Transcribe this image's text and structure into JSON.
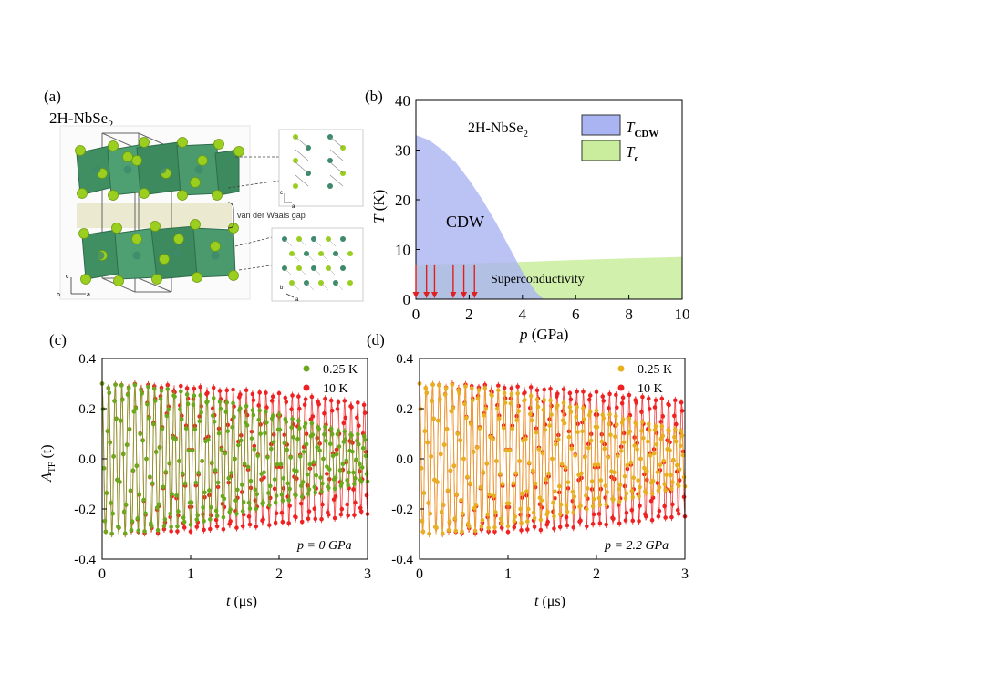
{
  "panel_a": {
    "label": "(a)",
    "title_base": "2H-NbSe",
    "title_sub": "2",
    "gap_label": "van der Waals gap",
    "axes_c": "c",
    "axes_b": "b",
    "axes_a": "a"
  },
  "chart_data": [
    {
      "id": "b",
      "type": "area",
      "label": "(b)",
      "annotation_base": "2H-NbSe",
      "annotation_sub": "2",
      "xlabel_var": "p",
      "xlabel_unit": " (GPa)",
      "ylabel_var": "T",
      "ylabel_unit": " (K)",
      "xlim": [
        0,
        10
      ],
      "ylim": [
        0,
        40
      ],
      "xticks": [
        0,
        2,
        4,
        6,
        8,
        10
      ],
      "yticks": [
        0,
        10,
        20,
        30,
        40
      ],
      "legend": [
        {
          "var": "T",
          "sub": "CDW",
          "color": "#aab4f3"
        },
        {
          "var": "T",
          "sub": "c",
          "color": "#c9ed9c"
        }
      ],
      "regions": {
        "cdw": {
          "name": "CDW",
          "color": "#aab4f3",
          "p": [
            0,
            0.5,
            1.0,
            1.5,
            2.0,
            2.5,
            3.0,
            3.5,
            4.0,
            4.5,
            4.8
          ],
          "T": [
            33,
            32,
            30,
            27.5,
            24,
            20,
            15.5,
            10.5,
            5.5,
            1.5,
            0
          ]
        },
        "sc": {
          "name": "Superconductivity",
          "color": "#c9ed9c",
          "p": [
            0,
            2,
            4,
            6,
            8,
            10
          ],
          "T": [
            7.0,
            7.2,
            7.5,
            7.9,
            8.2,
            8.5
          ]
        }
      },
      "measured_pressures": [
        0,
        0.4,
        0.7,
        1.4,
        1.8,
        2.2
      ],
      "arrow_color": "#e02020"
    },
    {
      "id": "c",
      "type": "scatter",
      "label": "(c)",
      "pressure_label": "p = 0 GPa",
      "xlabel_var": "t",
      "xlabel_unit": " (μs)",
      "ylabel_var": "A",
      "ylabel_sub": "TF",
      "ylabel_unit": " (t)",
      "xlim": [
        0,
        3
      ],
      "ylim": [
        -0.4,
        0.4
      ],
      "xticks": [
        "0",
        "1",
        "2",
        "3"
      ],
      "yticks": [
        "-0.4",
        "-0.2",
        "0.0",
        "0.2",
        "0.4"
      ],
      "frequency_MHz": 13.5,
      "series": [
        {
          "name": "0.25 K",
          "color": "#6aa81c",
          "A0": 0.3,
          "A_end": 0.09
        },
        {
          "name": "10 K",
          "color": "#ee2222",
          "A0": 0.3,
          "A_end": 0.22
        }
      ]
    },
    {
      "id": "d",
      "type": "scatter",
      "label": "(d)",
      "pressure_label": "p = 2.2 GPa",
      "xlabel_var": "t",
      "xlabel_unit": " (μs)",
      "xlim": [
        0,
        3
      ],
      "ylim": [
        -0.4,
        0.4
      ],
      "xticks": [
        "0",
        "1",
        "2",
        "3"
      ],
      "yticks": [
        "-0.4",
        "-0.2",
        "0.0",
        "0.2",
        "0.4"
      ],
      "frequency_MHz": 13.5,
      "series": [
        {
          "name": "0.25 K",
          "color": "#e8b020",
          "A0": 0.3,
          "A_end": 0.11
        },
        {
          "name": "10 K",
          "color": "#ee2222",
          "A0": 0.3,
          "A_end": 0.23
        }
      ]
    }
  ]
}
